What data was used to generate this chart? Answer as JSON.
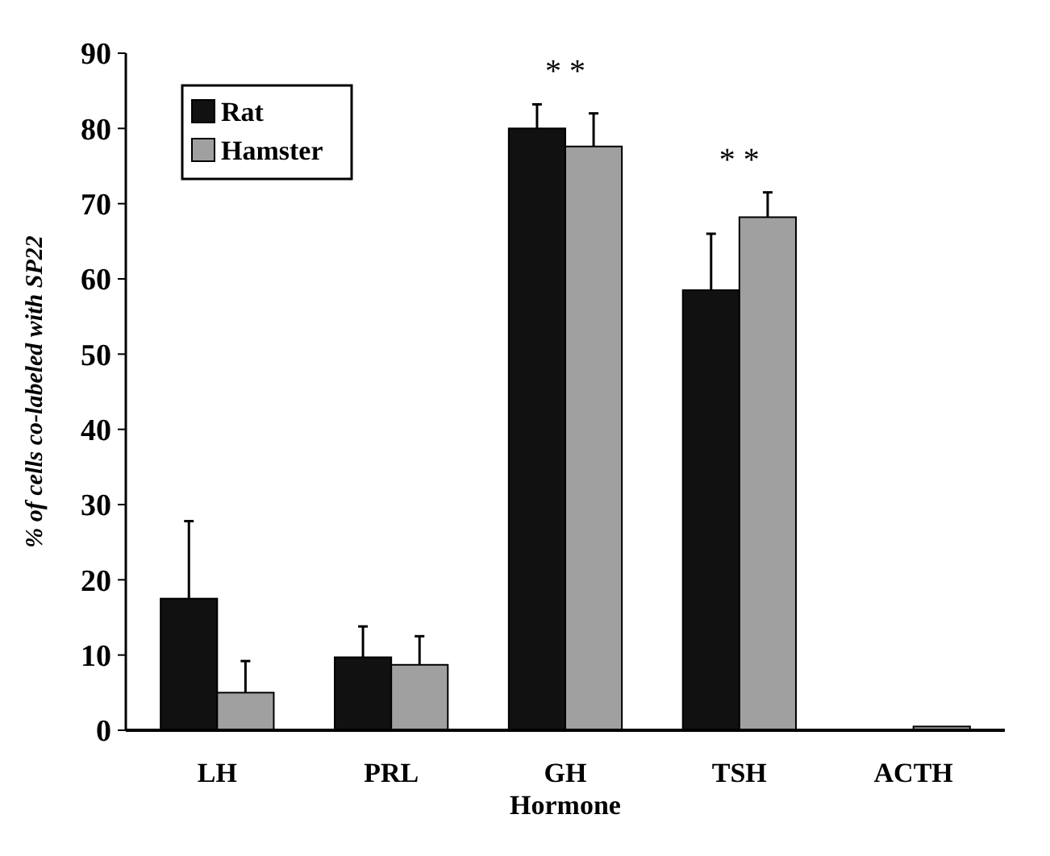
{
  "chart_data": {
    "type": "bar",
    "xlabel": "Hormone",
    "ylabel": "% of cells co-labeled with SP22",
    "categories": [
      "LH",
      "PRL",
      "GH",
      "TSH",
      "ACTH"
    ],
    "series": [
      {
        "name": "Rat",
        "color": "#111111",
        "values": [
          17.5,
          9.7,
          80,
          58.5,
          0
        ],
        "errors": [
          [
            17.5,
            27.8
          ],
          [
            9.7,
            13.8
          ],
          [
            80,
            83.2
          ],
          [
            58.5,
            66
          ],
          null
        ]
      },
      {
        "name": "Hamster",
        "color": "#a0a0a0",
        "values": [
          5,
          8.7,
          77.6,
          68.2,
          0.5
        ],
        "errors": [
          [
            5,
            9.2
          ],
          [
            8.7,
            12.5
          ],
          [
            77.6,
            82
          ],
          [
            68.2,
            71.5
          ],
          null
        ]
      }
    ],
    "ylim": [
      0,
      90
    ],
    "yticks": [
      0,
      10,
      20,
      30,
      40,
      50,
      60,
      70,
      80,
      90
    ],
    "grid": false,
    "legend": "top left",
    "annotations": [
      "* *",
      "* *"
    ]
  }
}
